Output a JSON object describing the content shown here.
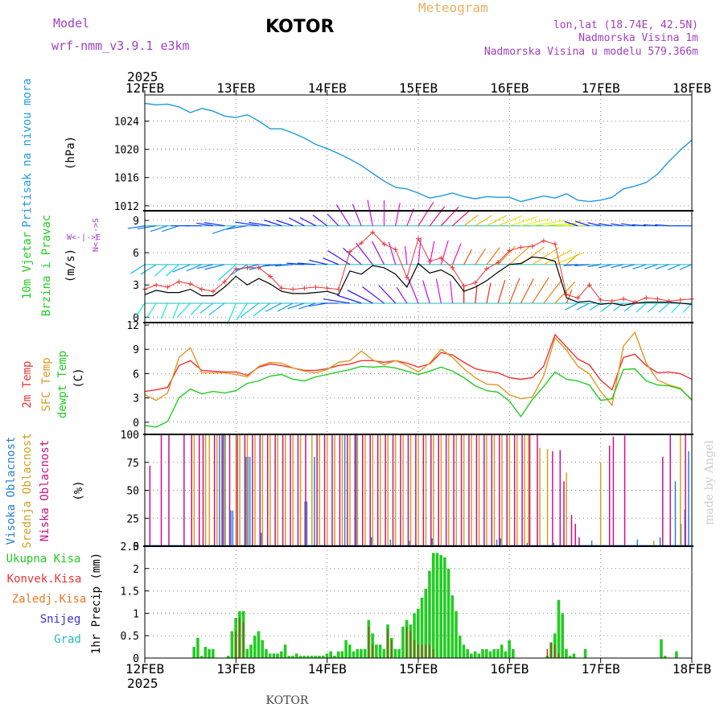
{
  "header": {
    "model_label": "Model",
    "model_name": "wrf-nmm_v3.9.1  e3km",
    "station": "KOTOR",
    "meteogram": "Meteogram",
    "lonlat": "lon,lat (18.74E, 42.5N)",
    "altitude": "Nadmorska Visina 1m",
    "model_altitude": "Nadmorska Visina u modelu 579.366m",
    "year_top": "2025",
    "year_bottom": "2025",
    "footer_station": "KOTOR",
    "credit": "made by Angel"
  },
  "colors": {
    "pressure": "#1e9be0",
    "t2m": "#ee3333",
    "sfc": "#dd9922",
    "dew": "#22cc22",
    "high": "#2a80d8",
    "mid": "#d4a020",
    "low": "#cc1188",
    "total": "#22cc22",
    "conv": "#ee3333",
    "frz": "#ee7722",
    "snow": "#3333dd",
    "grad": "#22bbbb",
    "wind_speed": "#000000",
    "gust": "#ee3333"
  },
  "chart_data": [
    {
      "id": "pressure",
      "type": "line",
      "ylabel_main": "Pritisak na nivou mora",
      "unit": "(hPa)",
      "ylim": [
        1011.3,
        1027.7
      ],
      "yticks": [
        "1012",
        "1016",
        "1020",
        "1024"
      ],
      "ytick_values": [
        1012,
        1016,
        1020,
        1024
      ],
      "xlim": [
        0,
        144
      ],
      "x": [
        0,
        3,
        6,
        9,
        12,
        15,
        18,
        21,
        24,
        27,
        30,
        33,
        36,
        39,
        42,
        45,
        48,
        51,
        54,
        57,
        60,
        63,
        66,
        69,
        72,
        75,
        78,
        81,
        84,
        87,
        90,
        93,
        96,
        99,
        102,
        105,
        108,
        111,
        114,
        117,
        120,
        123,
        126,
        129,
        132,
        135,
        138,
        141,
        144
      ],
      "values": [
        1026.5,
        1026.3,
        1026.4,
        1026.0,
        1025.2,
        1025.8,
        1025.4,
        1024.7,
        1024.5,
        1024.9,
        1024.0,
        1022.9,
        1022.9,
        1022.3,
        1021.6,
        1020.7,
        1020.1,
        1019.4,
        1018.6,
        1017.7,
        1016.6,
        1015.5,
        1014.6,
        1014.4,
        1013.8,
        1013.1,
        1013.4,
        1013.8,
        1013.3,
        1013.0,
        1013.3,
        1013.2,
        1013.2,
        1012.6,
        1013.0,
        1013.4,
        1013.1,
        1013.7,
        1012.8,
        1012.6,
        1012.8,
        1013.2,
        1014.4,
        1014.8,
        1015.3,
        1016.5,
        1018.3,
        1019.9,
        1021.3
      ]
    },
    {
      "id": "wind",
      "type": "line",
      "ylabel_main": "10m Vjetar",
      "ylabel_sub": "Brzina i Pravac",
      "unit": "(m/s)",
      "compass_ns": "N<--->S",
      "compass_we": "W<-|->E",
      "ylim": [
        -0.5,
        9.9
      ],
      "yticks": [
        "0",
        "3",
        "6",
        "9"
      ],
      "ytick_values": [
        0,
        3,
        6,
        9
      ],
      "xlim": [
        0,
        144
      ],
      "x": [
        0,
        3,
        6,
        9,
        12,
        15,
        18,
        21,
        24,
        27,
        30,
        33,
        36,
        39,
        42,
        45,
        48,
        51,
        54,
        57,
        60,
        63,
        66,
        69,
        72,
        75,
        78,
        81,
        84,
        87,
        90,
        93,
        96,
        99,
        102,
        105,
        108,
        111,
        114,
        117,
        120,
        123,
        126,
        129,
        132,
        135,
        138,
        141,
        144
      ],
      "speed": [
        2.1,
        2.5,
        2.3,
        2.3,
        2.6,
        2.0,
        2.0,
        2.8,
        3.8,
        3.0,
        3.6,
        3.1,
        2.4,
        2.2,
        2.2,
        2.3,
        2.4,
        2.1,
        4.3,
        4.0,
        4.8,
        4.6,
        4.0,
        2.8,
        5.0,
        4.1,
        4.4,
        3.8,
        2.4,
        2.8,
        3.4,
        4.2,
        4.9,
        5.0,
        5.6,
        5.5,
        5.2,
        1.8,
        1.4,
        1.5,
        1.2,
        1.3,
        1.1,
        1.3,
        1.4,
        1.4,
        1.4,
        1.3,
        1.2
      ],
      "gust": [
        2.6,
        3.0,
        2.8,
        3.3,
        3.1,
        2.6,
        2.4,
        3.3,
        4.5,
        4.6,
        4.6,
        3.8,
        2.7,
        2.6,
        2.7,
        2.8,
        2.7,
        2.6,
        6.1,
        6.9,
        7.9,
        6.8,
        6.3,
        3.7,
        7.3,
        5.2,
        5.5,
        4.6,
        2.9,
        3.2,
        4.5,
        5.1,
        6.2,
        6.5,
        6.6,
        7.1,
        6.8,
        2.1,
        1.8,
        3.0,
        1.6,
        1.5,
        1.7,
        1.4,
        1.8,
        1.7,
        1.5,
        1.6,
        1.7
      ],
      "band_direction_deg": [
        210,
        210,
        200,
        200,
        220,
        220,
        230,
        230,
        200,
        210,
        230,
        230,
        240,
        240,
        250,
        250,
        260,
        270,
        280,
        290,
        300,
        310,
        320,
        330,
        340,
        345,
        350,
        355,
        0,
        5,
        10,
        15,
        20,
        25,
        30,
        35,
        40,
        20,
        240,
        240,
        235,
        230,
        230,
        230,
        225,
        225,
        225,
        220,
        220
      ]
    },
    {
      "id": "temperature",
      "type": "line",
      "labels": [
        "2m Temp",
        "SFC Temp",
        "dewpt Temp"
      ],
      "unit": "(C)",
      "ylim": [
        -1.5,
        12.3
      ],
      "yticks": [
        "0",
        "3",
        "6",
        "9",
        "12"
      ],
      "ytick_values": [
        0,
        3,
        6,
        9,
        12
      ],
      "xlim": [
        0,
        144
      ],
      "x": [
        0,
        3,
        6,
        9,
        12,
        15,
        18,
        21,
        24,
        27,
        30,
        33,
        36,
        39,
        42,
        45,
        48,
        51,
        54,
        57,
        60,
        63,
        66,
        69,
        72,
        75,
        78,
        81,
        84,
        87,
        90,
        93,
        96,
        99,
        102,
        105,
        108,
        111,
        114,
        117,
        120,
        123,
        126,
        129,
        132,
        135,
        138,
        141,
        144
      ],
      "series": [
        {
          "name": "2m Temp",
          "values": [
            3.8,
            4.0,
            4.3,
            7.0,
            7.6,
            6.4,
            6.3,
            6.2,
            6.2,
            5.8,
            6.8,
            7.2,
            7.0,
            6.7,
            6.4,
            6.4,
            6.6,
            7.0,
            7.2,
            7.6,
            7.6,
            7.4,
            7.6,
            7.3,
            6.8,
            7.2,
            8.6,
            8.3,
            7.4,
            6.6,
            6.3,
            6.1,
            5.5,
            5.3,
            5.5,
            6.9,
            10.8,
            9.3,
            7.8,
            7.1,
            5.2,
            4.0,
            8.0,
            8.4,
            7.0,
            6.1,
            6.2,
            6.0,
            5.3
          ]
        },
        {
          "name": "SFC Temp",
          "values": [
            3.4,
            2.7,
            3.6,
            8.0,
            9.2,
            6.1,
            6.1,
            6.1,
            5.9,
            5.6,
            6.9,
            7.4,
            7.3,
            6.7,
            6.3,
            6.1,
            6.5,
            7.4,
            7.6,
            8.8,
            7.7,
            7.1,
            7.6,
            7.0,
            6.2,
            7.3,
            9.0,
            8.0,
            6.6,
            5.5,
            4.7,
            4.6,
            3.4,
            2.9,
            3.1,
            5.7,
            10.4,
            8.9,
            6.9,
            6.0,
            3.8,
            2.1,
            9.4,
            11.1,
            7.3,
            5.2,
            4.6,
            4.2,
            2.7
          ]
        },
        {
          "name": "dewpt Temp",
          "values": [
            -0.4,
            -0.6,
            0.1,
            3.0,
            4.1,
            3.5,
            3.8,
            3.6,
            3.9,
            4.8,
            5.1,
            5.7,
            5.9,
            5.3,
            5.1,
            5.6,
            5.9,
            6.2,
            6.5,
            6.9,
            6.8,
            6.9,
            6.7,
            6.3,
            5.9,
            6.3,
            6.8,
            6.3,
            5.5,
            4.5,
            3.9,
            3.7,
            2.6,
            0.7,
            2.8,
            4.4,
            6.2,
            5.3,
            5.1,
            4.6,
            2.7,
            2.9,
            6.5,
            6.6,
            5.1,
            4.6,
            4.5,
            4.1,
            2.8
          ]
        }
      ]
    },
    {
      "id": "clouds",
      "type": "bar",
      "labels": [
        "Visoka Oblacnost",
        "Srednja Oblacnost",
        "Niska Oblacnost"
      ],
      "unit": "(%)",
      "ylim": [
        0,
        100
      ],
      "yticks": [
        "0",
        "25",
        "50",
        "75",
        "100"
      ],
      "ytick_values": [
        0,
        25,
        50,
        75,
        100
      ],
      "xlim": [
        0,
        144
      ],
      "series": [
        {
          "name": "Visoka Oblacnost",
          "x": [
            20,
            21,
            21.5,
            23,
            23.5,
            27,
            27.5,
            28,
            31,
            42.5,
            43,
            45,
            53,
            56,
            60,
            65,
            70,
            76,
            93,
            94,
            101,
            108,
            118,
            130,
            136,
            140,
            141.5,
            142.5,
            143.5
          ],
          "values": [
            100,
            100,
            100,
            32,
            32,
            80,
            80,
            80,
            12,
            40,
            40,
            80,
            100,
            100,
            8,
            6,
            5,
            7,
            6,
            7,
            3,
            3,
            5,
            6,
            8,
            58,
            20,
            33,
            85
          ]
        },
        {
          "name": "Srednja Oblacnost",
          "x": [
            13,
            16,
            17,
            19,
            21,
            24,
            25,
            27,
            29,
            31,
            33,
            35,
            37,
            39,
            41,
            44,
            46,
            48,
            50,
            52,
            54,
            56,
            58,
            60,
            62,
            64,
            66,
            68,
            70,
            72,
            74,
            76,
            78,
            80,
            82,
            84,
            86,
            88,
            90,
            92,
            94,
            96,
            98,
            100,
            101,
            104,
            106,
            111,
            120,
            134,
            141
          ],
          "values": [
            100,
            100,
            100,
            100,
            100,
            100,
            100,
            100,
            100,
            100,
            100,
            100,
            100,
            100,
            100,
            100,
            100,
            100,
            100,
            100,
            100,
            100,
            100,
            100,
            100,
            100,
            100,
            100,
            100,
            100,
            100,
            100,
            100,
            100,
            100,
            100,
            100,
            100,
            100,
            100,
            100,
            100,
            100,
            100,
            100,
            88,
            87,
            66,
            75,
            5,
            100
          ]
        },
        {
          "name": "Niska Oblacnost",
          "x": [
            1,
            4,
            6,
            10,
            12,
            14,
            15,
            18,
            20,
            22,
            24,
            26,
            28,
            30,
            32,
            34,
            36,
            38,
            40,
            42,
            45,
            47,
            49,
            51,
            53,
            55,
            57,
            59,
            61,
            63,
            65,
            67,
            69,
            71,
            73,
            75,
            77,
            79,
            81,
            83,
            85,
            87,
            89,
            91,
            93,
            95,
            97,
            99,
            101,
            103,
            107,
            109,
            110,
            112,
            113,
            114,
            122,
            123,
            126,
            136,
            138,
            142
          ],
          "values": [
            72,
            100,
            100,
            100,
            100,
            100,
            100,
            100,
            100,
            100,
            100,
            100,
            100,
            100,
            100,
            100,
            100,
            100,
            100,
            100,
            100,
            100,
            100,
            100,
            100,
            100,
            100,
            100,
            100,
            100,
            100,
            100,
            100,
            100,
            100,
            100,
            100,
            100,
            100,
            100,
            100,
            100,
            100,
            100,
            100,
            100,
            100,
            100,
            100,
            100,
            85,
            86,
            58,
            28,
            20,
            8,
            90,
            98,
            99,
            80,
            100,
            100
          ]
        }
      ]
    },
    {
      "id": "precip",
      "type": "bar",
      "labels": [
        "Ukupna Kisa",
        "Konvek.Kisa",
        "Zaledj.Kisa",
        "Snijeg",
        "Grad"
      ],
      "unit": "1hr Precip (mm)",
      "ylim": [
        0,
        2.5
      ],
      "yticks": [
        "0",
        "0.5",
        "1",
        "1.5",
        "2",
        "2.5"
      ],
      "ytick_values": [
        0,
        0.5,
        1,
        1.5,
        2,
        2.5
      ],
      "xlim": [
        0,
        144
      ],
      "x_ticks": [
        "12FEB",
        "13FEB",
        "14FEB",
        "15FEB",
        "16FEB",
        "17FEB",
        "18FEB"
      ],
      "x_tick_values": [
        0,
        24,
        48,
        72,
        96,
        120,
        144
      ],
      "total": {
        "x": [
          13,
          14,
          15,
          16,
          17,
          18,
          22,
          23,
          24,
          25,
          26,
          27,
          28,
          29,
          30,
          31,
          32,
          33,
          34,
          35,
          36,
          37,
          38,
          39,
          40,
          41,
          42,
          43,
          44,
          45,
          46,
          47,
          48,
          49,
          50,
          51,
          52,
          53,
          54,
          55,
          56,
          57,
          58,
          59,
          60,
          61,
          62,
          63,
          64,
          65,
          66,
          67,
          68,
          69,
          70,
          71,
          72,
          73,
          74,
          75,
          76,
          77,
          78,
          79,
          80,
          81,
          82,
          83,
          84,
          85,
          86,
          87,
          88,
          89,
          90,
          91,
          92,
          93,
          94,
          95,
          96,
          97,
          106,
          107,
          108,
          109,
          110,
          111,
          112,
          113,
          116,
          136,
          137,
          140
        ],
        "values": [
          0.25,
          0.45,
          0.05,
          0.25,
          0.2,
          0.2,
          0.05,
          0.6,
          0.9,
          1.05,
          1.05,
          0.2,
          0.3,
          0.5,
          0.6,
          0.4,
          0.2,
          0.1,
          0.1,
          0.1,
          0.15,
          0.3,
          0.05,
          0.05,
          0.1,
          0.05,
          0.05,
          0.05,
          0.05,
          0.05,
          0.05,
          0.05,
          0.1,
          0.15,
          0.05,
          0.15,
          0.15,
          0.4,
          0.3,
          0.15,
          0.2,
          0.2,
          0.2,
          0.85,
          0.55,
          0.3,
          0.3,
          0.2,
          0.75,
          0.45,
          0.2,
          0.2,
          0.7,
          0.85,
          0.75,
          1.0,
          1.1,
          1.35,
          1.55,
          1.95,
          2.35,
          2.35,
          2.3,
          2.25,
          2.0,
          1.4,
          1.05,
          0.5,
          0.3,
          0.2,
          0.1,
          0.15,
          0.1,
          0.2,
          0.2,
          0.15,
          0.2,
          0.2,
          0.3,
          0.15,
          0.4,
          0.2,
          0.05,
          0.35,
          0.55,
          1.3,
          1.0,
          0.2,
          0.05,
          0.1,
          0.2,
          0.42,
          0.05,
          0.15
        ]
      },
      "convective": {
        "x": [
          24,
          25,
          26,
          59,
          60,
          64,
          65,
          69,
          70,
          71,
          72,
          73,
          74,
          75,
          76,
          106,
          107,
          108,
          109
        ],
        "values": [
          0.6,
          0.9,
          0.8,
          0.7,
          0.3,
          0.65,
          0.4,
          0.7,
          0.6,
          0.4,
          0.3,
          0.3,
          0.3,
          0.3,
          0.2,
          0.2,
          0.35,
          0.3,
          0.1
        ]
      }
    }
  ]
}
